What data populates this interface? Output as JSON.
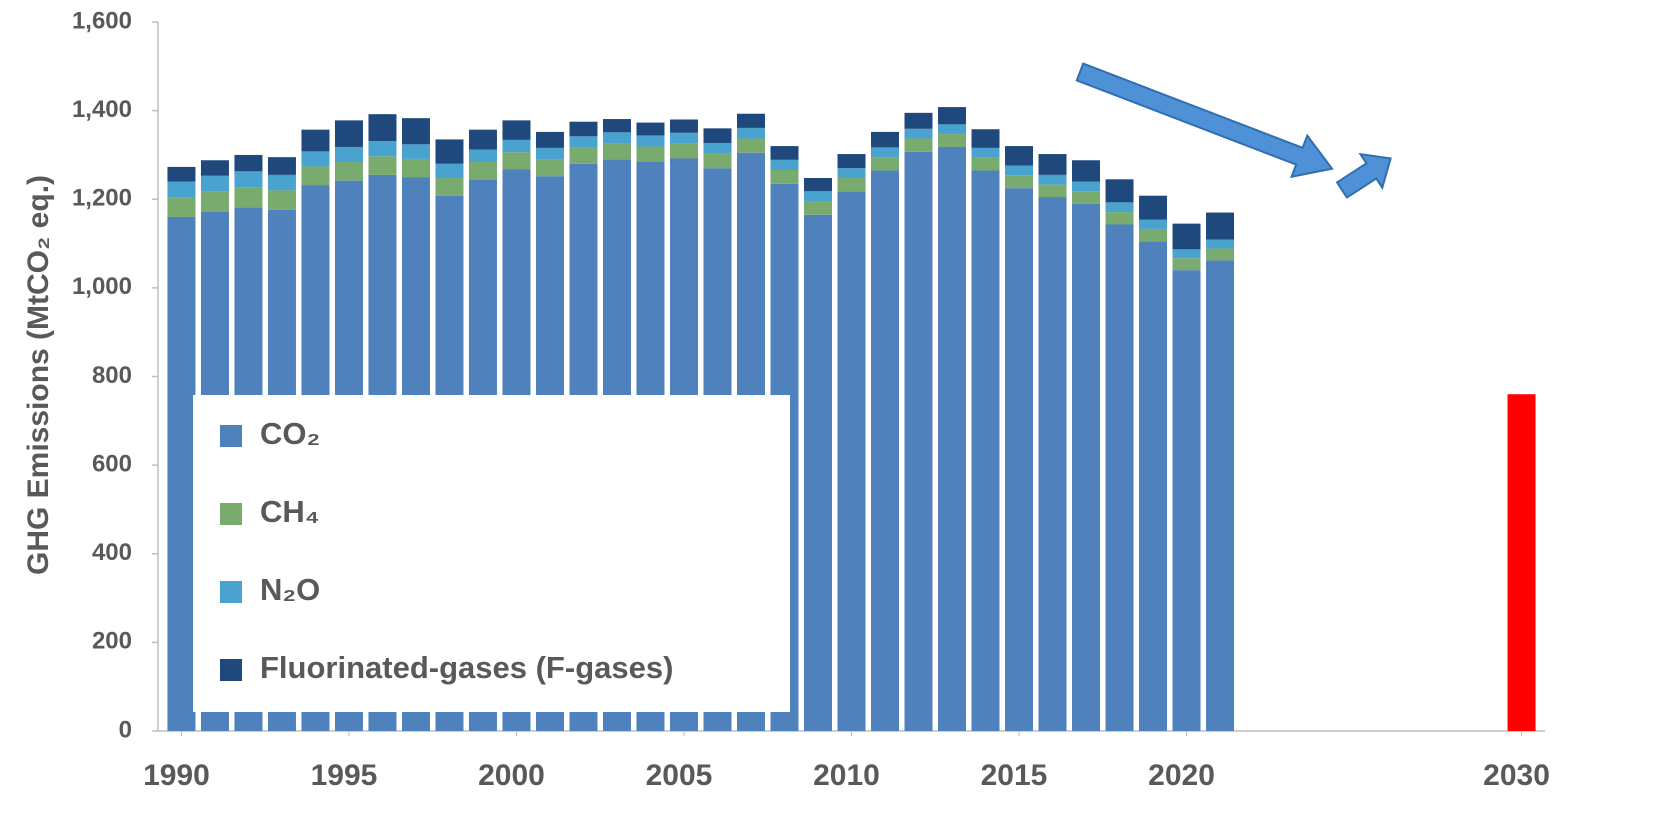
{
  "chart_data": {
    "type": "stacked_bar",
    "ylabel": "GHG Emissions (MtCO₂ eq.)",
    "x": [
      1990,
      1991,
      1992,
      1993,
      1994,
      1995,
      1996,
      1997,
      1998,
      1999,
      2000,
      2001,
      2002,
      2003,
      2004,
      2005,
      2006,
      2007,
      2008,
      2009,
      2010,
      2011,
      2012,
      2013,
      2014,
      2015,
      2016,
      2017,
      2018,
      2019,
      2020,
      2021
    ],
    "series": [
      {
        "name": "CO₂",
        "color": "#4f81bd",
        "values": [
          1160,
          1172,
          1182,
          1176,
          1232,
          1242,
          1255,
          1250,
          1208,
          1245,
          1268,
          1252,
          1280,
          1290,
          1285,
          1292,
          1270,
          1305,
          1235,
          1165,
          1218,
          1265,
          1307,
          1318,
          1265,
          1225,
          1205,
          1190,
          1143,
          1105,
          1040,
          1062
        ]
      },
      {
        "name": "CH₄",
        "color": "#79aa6e",
        "values": [
          45,
          45,
          45,
          44,
          42,
          42,
          42,
          41,
          40,
          39,
          38,
          37,
          36,
          35,
          34,
          33,
          33,
          32,
          31,
          31,
          30,
          30,
          30,
          29,
          29,
          29,
          28,
          28,
          28,
          28,
          27,
          27
        ]
      },
      {
        "name": "N₂O",
        "color": "#4aa3cf",
        "values": [
          35,
          36,
          36,
          35,
          34,
          34,
          34,
          33,
          32,
          28,
          28,
          27,
          26,
          26,
          25,
          25,
          24,
          24,
          23,
          22,
          22,
          22,
          22,
          22,
          22,
          22,
          22,
          22,
          22,
          21,
          20,
          20
        ]
      },
      {
        "name": "Fluorinated-gases (F-gases)",
        "color": "#1f497d",
        "values": [
          33,
          35,
          37,
          40,
          49,
          60,
          61,
          59,
          55,
          45,
          44,
          36,
          33,
          30,
          29,
          30,
          33,
          32,
          31,
          30,
          32,
          35,
          36,
          39,
          42,
          44,
          47,
          48,
          52,
          54,
          58,
          61
        ]
      }
    ],
    "target": {
      "x": 2030,
      "value": 760,
      "color": "#ff0000"
    },
    "xlim": [
      1989.3,
      2030.7
    ],
    "xticks": [
      1990,
      1995,
      2000,
      2005,
      2010,
      2015,
      2020,
      2030
    ],
    "ylim": [
      0,
      1600
    ],
    "yticks": [
      0,
      200,
      400,
      600,
      800,
      {
        "value": 1000,
        "label": "1,000"
      },
      {
        "value": 1200,
        "label": "1,200"
      },
      {
        "value": 1400,
        "label": "1,400"
      },
      {
        "value": 1600,
        "label": "1,600"
      }
    ],
    "grid": false,
    "legend": "lower-left"
  }
}
